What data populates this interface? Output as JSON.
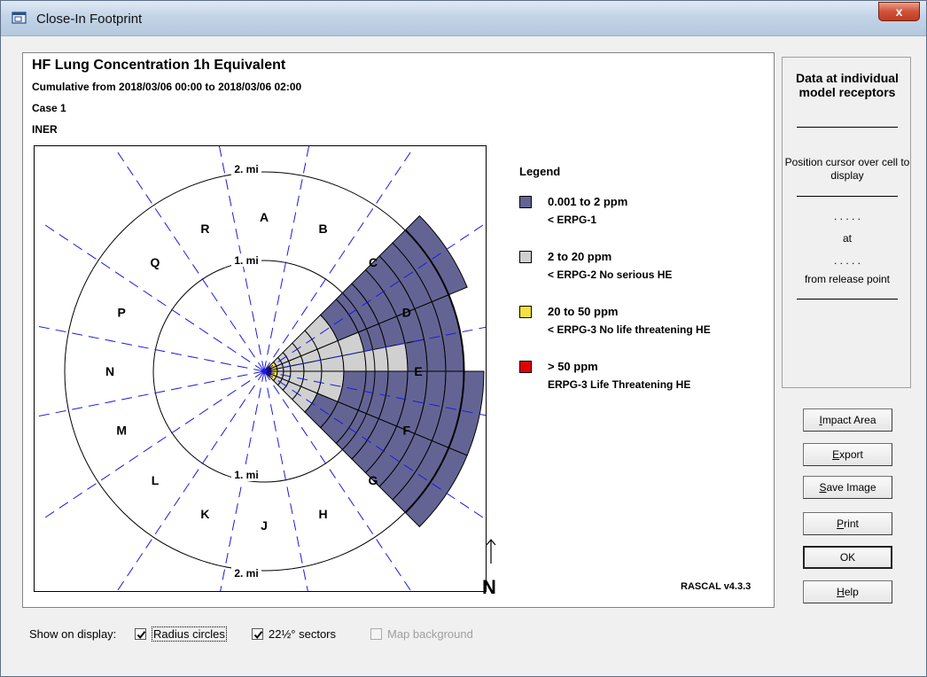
{
  "window": {
    "title": "Close-In Footprint",
    "close_label": "x"
  },
  "plot": {
    "title": "HF Lung Concentration 1h Equivalent",
    "subtitle": "Cumulative from 2018/03/06 00:00 to 2018/03/06 02:00",
    "case": "Case 1",
    "site": "INER",
    "north_label": "N",
    "version": "RASCAL v4.3.3",
    "ring_labels": {
      "inner_top": "1. mi",
      "inner_bottom": "1. mi",
      "outer_top": "2. mi",
      "outer_bottom": "2. mi"
    },
    "sectors": [
      "A",
      "B",
      "C",
      "D",
      "E",
      "F",
      "G",
      "H",
      "J",
      "K",
      "L",
      "M",
      "N",
      "P",
      "Q",
      "R"
    ]
  },
  "legend": {
    "title": "Legend",
    "items": [
      {
        "range": "0.001 to 2 ppm",
        "note": "< ERPG-1",
        "color": "#646494"
      },
      {
        "range": "2 to 20 ppm",
        "note": "< ERPG-2 No serious HE",
        "color": "#d0d0d0"
      },
      {
        "range": "20 to 50 ppm",
        "note": "< ERPG-3 No life threatening HE",
        "color": "#f5e13c"
      },
      {
        "range": "> 50 ppm",
        "note": "ERPG-3 Life Threatening HE",
        "color": "#e00000"
      }
    ]
  },
  "side_panel": {
    "title": "Data at individual model receptors",
    "hint": "Position cursor over cell to display",
    "dots1": ". . . . .",
    "at": "at",
    "dots2": ". . . . .",
    "from": "from release point"
  },
  "buttons": {
    "impact_area": {
      "mnemonic": "I",
      "rest": "mpact Area"
    },
    "export": {
      "mnemonic": "E",
      "rest": "xport"
    },
    "save_image": {
      "mnemonic": "S",
      "rest": "ave Image"
    },
    "print": {
      "mnemonic": "P",
      "rest": "rint"
    },
    "ok": {
      "label": "OK"
    },
    "help": {
      "mnemonic": "H",
      "rest": "elp"
    }
  },
  "display_options": {
    "label": "Show on display:",
    "radius_circles": {
      "label": "Radius circles",
      "checked": true
    },
    "sectors": {
      "label": "22½° sectors",
      "checked": true
    },
    "map_background": {
      "label": "Map background",
      "checked": false,
      "disabled": true
    }
  }
}
